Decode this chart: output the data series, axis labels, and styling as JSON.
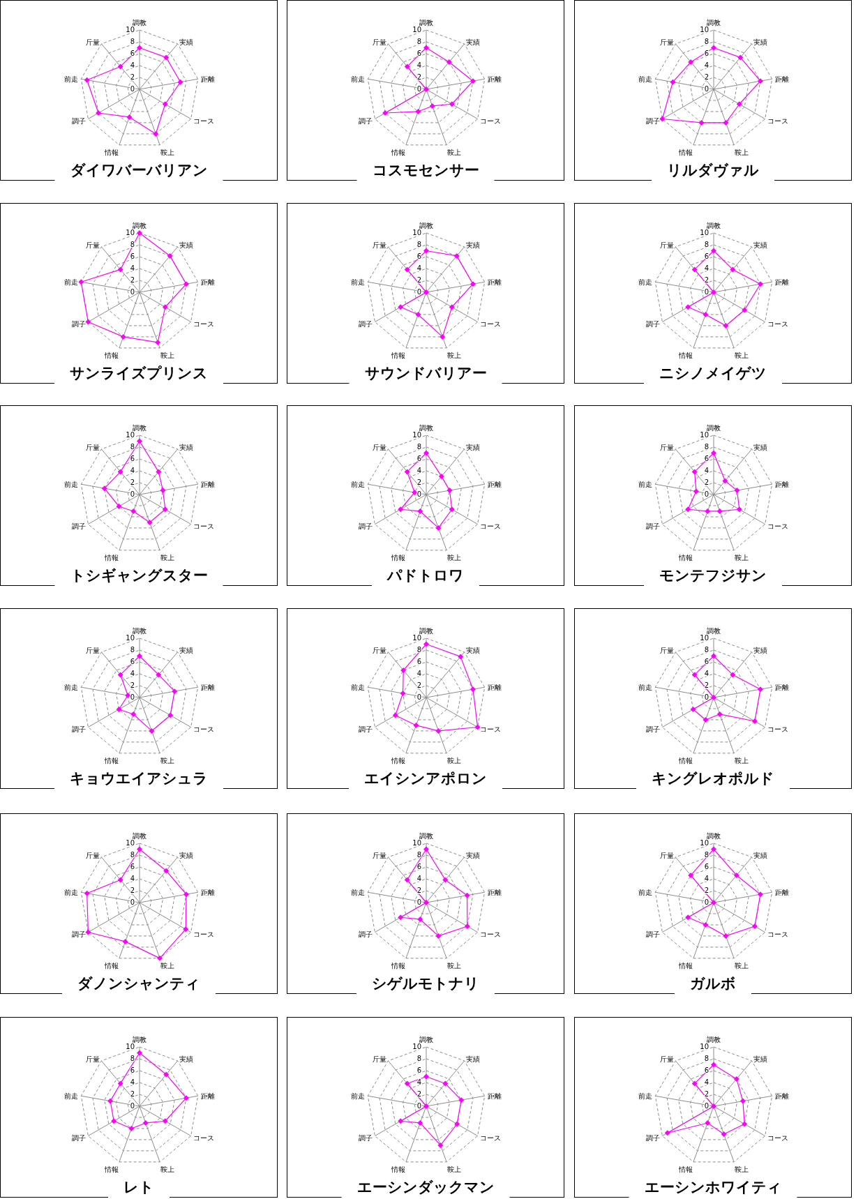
{
  "chart_data": [
    {
      "type": "radar",
      "title": "ダイワバーバリアン",
      "categories": [
        "調教",
        "実績",
        "距離",
        "コース",
        "鞍上",
        "情報",
        "調子",
        "前走",
        "斤量"
      ],
      "series": [
        {
          "color": "#ff00ff",
          "values": [
            7,
            7,
            7,
            5,
            8,
            5,
            8,
            9,
            5
          ]
        }
      ],
      "ylim": [
        0,
        10
      ],
      "yticks": [
        0,
        2,
        4,
        6,
        8,
        10
      ],
      "grid": true,
      "marker": "diamond"
    },
    {
      "type": "radar",
      "title": "コスモセンサー",
      "categories": [
        "調教",
        "実績",
        "距離",
        "コース",
        "鞍上",
        "情報",
        "調子",
        "前走",
        "斤量"
      ],
      "series": [
        {
          "color": "#ff00ff",
          "values": [
            7,
            6,
            8,
            5,
            3,
            4,
            8,
            0,
            5
          ]
        }
      ],
      "ylim": [
        0,
        10
      ],
      "yticks": [
        0,
        2,
        4,
        6,
        8,
        10
      ],
      "grid": true,
      "marker": "diamond"
    },
    {
      "type": "radar",
      "title": "リルダヴァル",
      "categories": [
        "調教",
        "実績",
        "距離",
        "コース",
        "鞍上",
        "情報",
        "調子",
        "前走",
        "斤量"
      ],
      "series": [
        {
          "color": "#ff00ff",
          "values": [
            7,
            7,
            8,
            5,
            6,
            6,
            10,
            7,
            6
          ]
        }
      ],
      "ylim": [
        0,
        10
      ],
      "yticks": [
        0,
        2,
        4,
        6,
        8,
        10
      ],
      "grid": true,
      "marker": "diamond"
    },
    {
      "type": "radar",
      "title": "サンライズプリンス",
      "categories": [
        "調教",
        "実績",
        "距離",
        "コース",
        "鞍上",
        "情報",
        "調子",
        "前走",
        "斤量"
      ],
      "series": [
        {
          "color": "#ff00ff",
          "values": [
            10,
            8,
            8,
            5,
            9,
            8,
            10,
            10,
            5
          ]
        }
      ],
      "ylim": [
        0,
        10
      ],
      "yticks": [
        0,
        2,
        4,
        6,
        8,
        10
      ],
      "grid": true,
      "marker": "diamond"
    },
    {
      "type": "radar",
      "title": "サウンドバリアー",
      "categories": [
        "調教",
        "実績",
        "距離",
        "コース",
        "鞍上",
        "情報",
        "調子",
        "前走",
        "斤量"
      ],
      "series": [
        {
          "color": "#ff00ff",
          "values": [
            7,
            8,
            8,
            5,
            8,
            4,
            5,
            0,
            5
          ]
        }
      ],
      "ylim": [
        0,
        10
      ],
      "yticks": [
        0,
        2,
        4,
        6,
        8,
        10
      ],
      "grid": true,
      "marker": "diamond"
    },
    {
      "type": "radar",
      "title": "ニシノメイゲツ",
      "categories": [
        "調教",
        "実績",
        "距離",
        "コース",
        "鞍上",
        "情報",
        "調子",
        "前走",
        "斤量"
      ],
      "series": [
        {
          "color": "#ff00ff",
          "values": [
            7,
            5,
            8,
            6,
            6,
            4,
            5,
            0,
            5
          ]
        }
      ],
      "ylim": [
        0,
        10
      ],
      "yticks": [
        0,
        2,
        4,
        6,
        8,
        10
      ],
      "grid": true,
      "marker": "diamond"
    },
    {
      "type": "radar",
      "title": "トシギャングスター",
      "categories": [
        "調教",
        "実績",
        "距離",
        "コース",
        "鞍上",
        "情報",
        "調子",
        "前走",
        "斤量"
      ],
      "series": [
        {
          "color": "#ff00ff",
          "values": [
            9,
            5,
            4,
            5,
            5,
            3,
            4,
            6,
            5
          ]
        }
      ],
      "ylim": [
        0,
        10
      ],
      "yticks": [
        0,
        2,
        4,
        6,
        8,
        10
      ],
      "grid": true,
      "marker": "diamond"
    },
    {
      "type": "radar",
      "title": "パドトロワ",
      "categories": [
        "調教",
        "実績",
        "距離",
        "コース",
        "鞍上",
        "情報",
        "調子",
        "前走",
        "斤量"
      ],
      "series": [
        {
          "color": "#ff00ff",
          "values": [
            7,
            4,
            4,
            5,
            6,
            3,
            5,
            2,
            5
          ]
        }
      ],
      "ylim": [
        0,
        10
      ],
      "yticks": [
        0,
        2,
        4,
        6,
        8,
        10
      ],
      "grid": true,
      "marker": "diamond"
    },
    {
      "type": "radar",
      "title": "モンテフジサン",
      "categories": [
        "調教",
        "実績",
        "距離",
        "コース",
        "鞍上",
        "情報",
        "調子",
        "前走",
        "斤量"
      ],
      "series": [
        {
          "color": "#ff00ff",
          "values": [
            7,
            3,
            4,
            5,
            3,
            3,
            5,
            3,
            5
          ]
        }
      ],
      "ylim": [
        0,
        10
      ],
      "yticks": [
        0,
        2,
        4,
        6,
        8,
        10
      ],
      "grid": true,
      "marker": "diamond"
    },
    {
      "type": "radar",
      "title": "キョウエイアシュラ",
      "categories": [
        "調教",
        "実績",
        "距離",
        "コース",
        "鞍上",
        "情報",
        "調子",
        "前走",
        "斤量"
      ],
      "series": [
        {
          "color": "#ff00ff",
          "values": [
            7,
            5,
            6,
            6,
            6,
            3,
            4,
            2,
            5
          ]
        }
      ],
      "ylim": [
        0,
        10
      ],
      "yticks": [
        0,
        2,
        4,
        6,
        8,
        10
      ],
      "grid": true,
      "marker": "diamond"
    },
    {
      "type": "radar",
      "title": "エイシンアポロン",
      "categories": [
        "調教",
        "実績",
        "距離",
        "コース",
        "鞍上",
        "情報",
        "調子",
        "前走",
        "斤量"
      ],
      "series": [
        {
          "color": "#ff00ff",
          "values": [
            9,
            9,
            8,
            10,
            6,
            5,
            6,
            4,
            6
          ]
        }
      ],
      "ylim": [
        0,
        10
      ],
      "yticks": [
        0,
        2,
        4,
        6,
        8,
        10
      ],
      "grid": true,
      "marker": "diamond"
    },
    {
      "type": "radar",
      "title": "キングレオポルド",
      "categories": [
        "調教",
        "実績",
        "距離",
        "コース",
        "鞍上",
        "情報",
        "調子",
        "前走",
        "斤量"
      ],
      "series": [
        {
          "color": "#ff00ff",
          "values": [
            7,
            5,
            8,
            8,
            3,
            4,
            4,
            0,
            5
          ]
        }
      ],
      "ylim": [
        0,
        10
      ],
      "yticks": [
        0,
        2,
        4,
        6,
        8,
        10
      ],
      "grid": true,
      "marker": "diamond"
    },
    {
      "type": "radar",
      "title": "ダノンシャンティ",
      "categories": [
        "調教",
        "実績",
        "距離",
        "コース",
        "鞍上",
        "情報",
        "調子",
        "前走",
        "斤量"
      ],
      "series": [
        {
          "color": "#ff00ff",
          "values": [
            9,
            7,
            8,
            9,
            10,
            7,
            10,
            9,
            5
          ]
        }
      ],
      "ylim": [
        0,
        10
      ],
      "yticks": [
        0,
        2,
        4,
        6,
        8,
        10
      ],
      "grid": true,
      "marker": "diamond"
    },
    {
      "type": "radar",
      "title": "シゲルモトナリ",
      "categories": [
        "調教",
        "実績",
        "距離",
        "コース",
        "鞍上",
        "情報",
        "調子",
        "前走",
        "斤量"
      ],
      "series": [
        {
          "color": "#ff00ff",
          "values": [
            9,
            5,
            7,
            8,
            6,
            3,
            5,
            0,
            5
          ]
        }
      ],
      "ylim": [
        0,
        10
      ],
      "yticks": [
        0,
        2,
        4,
        6,
        8,
        10
      ],
      "grid": true,
      "marker": "diamond"
    },
    {
      "type": "radar",
      "title": "ガルボ",
      "categories": [
        "調教",
        "実績",
        "距離",
        "コース",
        "鞍上",
        "情報",
        "調子",
        "前走",
        "斤量"
      ],
      "series": [
        {
          "color": "#ff00ff",
          "values": [
            9,
            6,
            8,
            8,
            6,
            4,
            5,
            0,
            6
          ]
        }
      ],
      "ylim": [
        0,
        10
      ],
      "yticks": [
        0,
        2,
        4,
        6,
        8,
        10
      ],
      "grid": true,
      "marker": "diamond"
    },
    {
      "type": "radar",
      "title": "レト",
      "categories": [
        "調教",
        "実績",
        "距離",
        "コース",
        "鞍上",
        "情報",
        "調子",
        "前走",
        "斤量"
      ],
      "series": [
        {
          "color": "#ff00ff",
          "values": [
            9,
            7,
            8,
            5,
            3,
            4,
            5,
            5,
            5
          ]
        }
      ],
      "ylim": [
        0,
        10
      ],
      "yticks": [
        0,
        2,
        4,
        6,
        8,
        10
      ],
      "grid": true,
      "marker": "diamond"
    },
    {
      "type": "radar",
      "title": "エーシンダックマン",
      "categories": [
        "調教",
        "実績",
        "距離",
        "コース",
        "鞍上",
        "情報",
        "調子",
        "前走",
        "斤量"
      ],
      "series": [
        {
          "color": "#ff00ff",
          "values": [
            5,
            5,
            6,
            6,
            7,
            3,
            5,
            0,
            5
          ]
        }
      ],
      "ylim": [
        0,
        10
      ],
      "yticks": [
        0,
        2,
        4,
        6,
        8,
        10
      ],
      "grid": true,
      "marker": "diamond"
    },
    {
      "type": "radar",
      "title": "エーシンホワイティ",
      "categories": [
        "調教",
        "実績",
        "距離",
        "コース",
        "鞍上",
        "情報",
        "調子",
        "前走",
        "斤量"
      ],
      "series": [
        {
          "color": "#ff00ff",
          "values": [
            7,
            6,
            5,
            6,
            5,
            3,
            9,
            0,
            5
          ]
        }
      ],
      "ylim": [
        0,
        10
      ],
      "yticks": [
        0,
        2,
        4,
        6,
        8,
        10
      ],
      "grid": true,
      "marker": "diamond"
    }
  ]
}
